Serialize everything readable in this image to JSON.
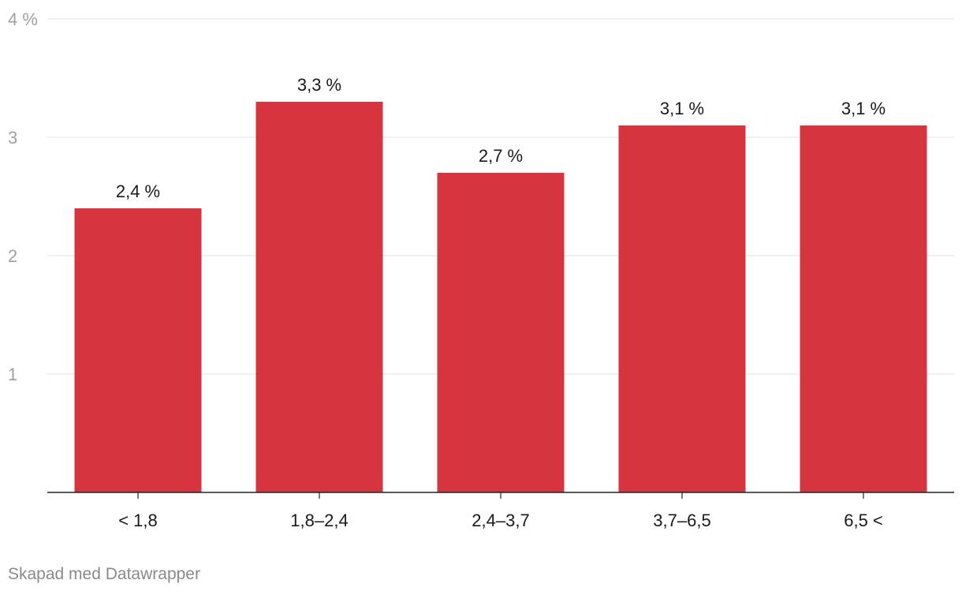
{
  "chart_data": {
    "type": "bar",
    "categories": [
      "< 1,8",
      "1,8–2,4",
      "2,4–3,7",
      "3,7–6,5",
      "6,5 <"
    ],
    "values": [
      2.4,
      3.3,
      2.7,
      3.1,
      3.1
    ],
    "value_labels": [
      "2,4 %",
      "3,3 %",
      "2,7 %",
      "3,1 %",
      "3,1 %"
    ],
    "title": "",
    "xlabel": "",
    "ylabel": "",
    "ylim": [
      0,
      4
    ],
    "yticks": [
      1,
      2,
      3,
      4
    ],
    "ytick_labels": [
      "1",
      "2",
      "3",
      "4 %"
    ],
    "grid": true,
    "bar_color": "#d6353f"
  },
  "footer": {
    "credit": "Skapad med Datawrapper"
  }
}
